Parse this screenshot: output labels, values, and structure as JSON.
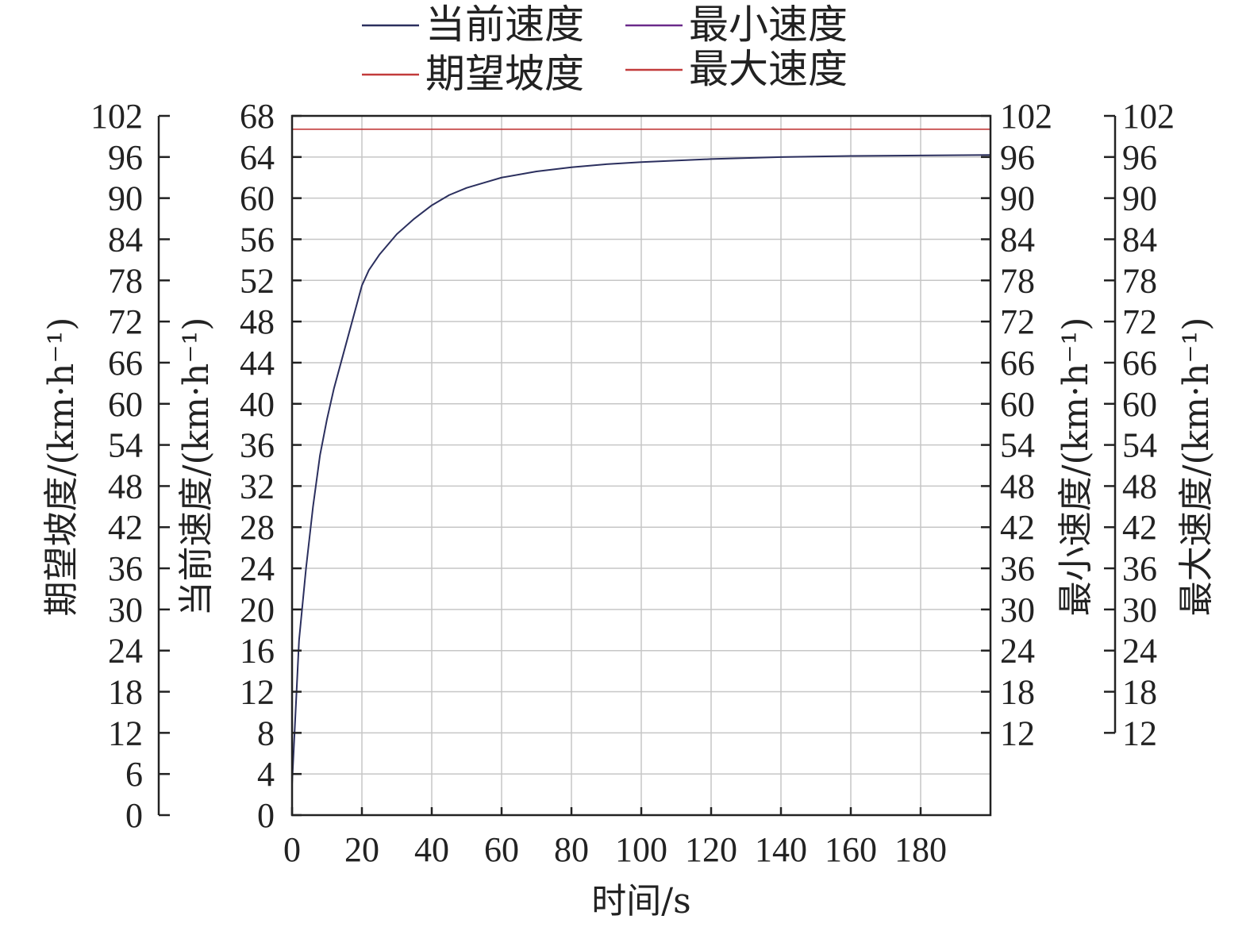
{
  "chart_data": {
    "type": "line",
    "xlabel": "时间/s",
    "x_ticks": [
      "0",
      "20",
      "40",
      "60",
      "80",
      "100",
      "120",
      "140",
      "160",
      "180"
    ],
    "xlim": [
      0,
      200
    ],
    "grid": true,
    "legend_placement": "top",
    "legend": [
      {
        "name": "当前速度",
        "color": "#2b2f5e"
      },
      {
        "name": "最小速度",
        "color": "#6a2a8a"
      },
      {
        "name": "期望坡度",
        "color": "#c23b3b"
      },
      {
        "name": "最大速度",
        "color": "#c23b3b"
      }
    ],
    "axes": [
      {
        "id": "grade",
        "side": "left-outer",
        "label": "期望坡度/(km·h⁻¹)",
        "range": [
          0,
          102
        ],
        "ticks": [
          "0",
          "6",
          "12",
          "18",
          "24",
          "30",
          "36",
          "42",
          "48",
          "54",
          "60",
          "66",
          "72",
          "78",
          "84",
          "90",
          "96",
          "102"
        ]
      },
      {
        "id": "current",
        "side": "left-inner",
        "label": "当前速度/(km·h⁻¹)",
        "range": [
          0,
          68
        ],
        "ticks": [
          "0",
          "4",
          "8",
          "12",
          "16",
          "20",
          "24",
          "28",
          "32",
          "36",
          "40",
          "44",
          "48",
          "52",
          "56",
          "60",
          "64",
          "68"
        ]
      },
      {
        "id": "min",
        "side": "right-inner",
        "label": "最小速度/(km·h⁻¹)",
        "range": [
          12,
          102
        ],
        "ticks": [
          "12",
          "18",
          "24",
          "30",
          "36",
          "42",
          "48",
          "54",
          "60",
          "66",
          "72",
          "78",
          "84",
          "90",
          "96",
          "102"
        ]
      },
      {
        "id": "max",
        "side": "right-outer",
        "label": "最大速度/(km·h⁻¹)",
        "range": [
          12,
          102
        ],
        "ticks": [
          "12",
          "18",
          "24",
          "30",
          "36",
          "42",
          "48",
          "54",
          "60",
          "66",
          "72",
          "78",
          "84",
          "90",
          "96",
          "102"
        ]
      }
    ],
    "series": [
      {
        "name": "当前速度",
        "axis": "current",
        "color": "#2b2f5e",
        "x": [
          0,
          1,
          2,
          4,
          6,
          8,
          10,
          12,
          14,
          16,
          18,
          20,
          22,
          25,
          30,
          35,
          40,
          45,
          50,
          55,
          60,
          70,
          80,
          90,
          100,
          120,
          140,
          160,
          180,
          200
        ],
        "y": [
          3,
          10,
          17,
          24,
          30,
          35,
          38.5,
          41.5,
          44,
          46.5,
          49,
          51.5,
          53,
          54.5,
          56.5,
          58,
          59.3,
          60.3,
          61.0,
          61.5,
          62.0,
          62.6,
          63.0,
          63.3,
          63.5,
          63.8,
          64.0,
          64.1,
          64.15,
          64.2
        ]
      },
      {
        "name": "最大速度",
        "axis": "current",
        "color": "#c23b3b",
        "x": [
          0,
          200
        ],
        "y": [
          66.7,
          66.7
        ]
      }
    ]
  }
}
